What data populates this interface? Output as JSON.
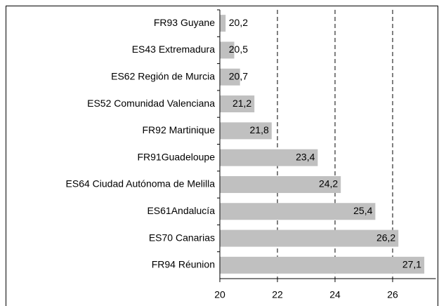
{
  "chart_data": {
    "type": "barh",
    "categories": [
      "FR93 Guyane",
      "ES43 Extremadura",
      "ES62 Región de Murcia",
      "ES52 Comunidad Valenciana",
      "FR92 Martinique",
      "FR91Guadeloupe",
      "ES64 Ciudad Autónoma de Melilla",
      "ES61Andalucía",
      "ES70 Canarias",
      "FR94 Réunion"
    ],
    "values": [
      20.2,
      20.5,
      20.7,
      21.2,
      21.8,
      23.4,
      24.2,
      25.4,
      26.2,
      27.1
    ],
    "value_labels": [
      "20,2",
      "20,5",
      "20,7",
      "21,2",
      "21,8",
      "23,4",
      "24,2",
      "25,4",
      "26,2",
      "27,1"
    ],
    "color": "#c0c0c0",
    "xlim": [
      20,
      27.5
    ],
    "xticks": [
      20,
      22,
      24,
      26
    ],
    "grid": true
  }
}
